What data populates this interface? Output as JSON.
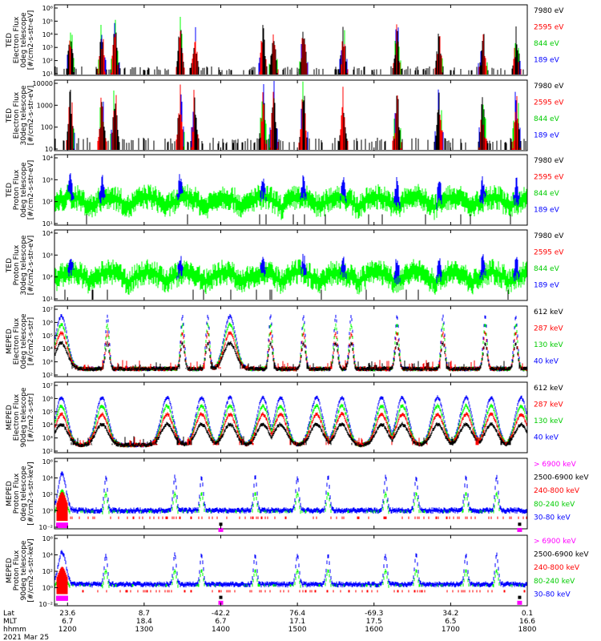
{
  "chart_data": {
    "type": "line",
    "x": {
      "time_ticks": [
        "1200",
        "1300",
        "1400",
        "1500",
        "1600",
        "1700",
        "1800"
      ],
      "hours": [
        12,
        13,
        14,
        15,
        16,
        17,
        18
      ],
      "range_hours": [
        11.83,
        18.0
      ]
    },
    "footer": {
      "row_labels": [
        "Lat",
        "MLT",
        "hhmm"
      ],
      "lat": [
        "23.6",
        "8.7",
        "-42.2",
        "76.4",
        "-69.3",
        "34.2",
        "0.1"
      ],
      "mlt": [
        "6.7",
        "18.4",
        "6.7",
        "17.1",
        "17.5",
        "6.5",
        "16.6"
      ],
      "date": "2021 Mar 25"
    },
    "colors": {
      "black": "#000000",
      "red": "#ff0000",
      "green": "#00ff00",
      "blue": "#0000ff",
      "magenta": "#ff00ff"
    },
    "panels": [
      {
        "ylabel": [
          "TED",
          "Electron Flux",
          "0deg telescope",
          "[#/cm2-s-str-eV]"
        ],
        "yticks": [
          "10¹",
          "10²",
          "10³",
          "10⁴",
          "10⁵",
          "10⁶"
        ],
        "ylog": [
          1,
          6
        ],
        "legend": [
          {
            "label": "7980 eV",
            "color": "#000000"
          },
          {
            "label": "2595 eV",
            "color": "#ff0000"
          },
          {
            "label": "844 eV",
            "color": "#00cc00"
          },
          {
            "label": "189 eV",
            "color": "#0000ff"
          }
        ],
        "kind": "ted_e",
        "bursts": [
          12.04,
          12.45,
          12.62,
          13.47,
          13.66,
          14.55,
          14.69,
          15.08,
          15.6,
          16.3,
          16.85,
          17.42,
          17.86
        ],
        "peak": 4.5
      },
      {
        "ylabel": [
          "TED",
          "Electron Flux",
          "30deg telescope",
          "[#/cm2-s-str-eV]"
        ],
        "yticks": [
          "10",
          "100",
          "1000",
          "10000"
        ],
        "ylog": [
          0.5,
          4
        ],
        "legend": [
          {
            "label": "7980 eV",
            "color": "#000000"
          },
          {
            "label": "2595 eV",
            "color": "#ff0000"
          },
          {
            "label": "844 eV",
            "color": "#00cc00"
          },
          {
            "label": "189 eV",
            "color": "#0000ff"
          }
        ],
        "kind": "ted_e",
        "bursts": [
          12.04,
          12.45,
          12.62,
          13.47,
          13.66,
          14.55,
          14.69,
          15.08,
          15.6,
          16.3,
          16.85,
          17.42,
          17.86
        ],
        "peak": 3.5
      },
      {
        "ylabel": [
          "TED",
          "Proton Flux",
          "0deg telescope",
          "[#/cm2-s-str-eV]"
        ],
        "yticks": [
          "10¹",
          "10²",
          "10³",
          "10⁴"
        ],
        "ylog": [
          0.8,
          4.7
        ],
        "legend": [
          {
            "label": "7980 eV",
            "color": "#000000"
          },
          {
            "label": "2595 eV",
            "color": "#ff0000"
          },
          {
            "label": "844 eV",
            "color": "#00cc00"
          },
          {
            "label": "189 eV",
            "color": "#0000ff"
          }
        ],
        "kind": "ted_p",
        "bursts": [
          12.04,
          12.45,
          13.47,
          14.55,
          15.08,
          15.6,
          16.3,
          16.85,
          17.42,
          17.86
        ],
        "peak": 3.8
      },
      {
        "ylabel": [
          "TED",
          "Proton Flux",
          "30deg telescope",
          "[#/cm2-s-str-eV]"
        ],
        "yticks": [
          "10¹",
          "10²",
          "10³",
          "10⁴"
        ],
        "ylog": [
          0.8,
          4.7
        ],
        "legend": [
          {
            "label": "7980 eV",
            "color": "#000000"
          },
          {
            "label": "2595 eV",
            "color": "#ff0000"
          },
          {
            "label": "844 eV",
            "color": "#00cc00"
          },
          {
            "label": "189 eV",
            "color": "#0000ff"
          }
        ],
        "kind": "ted_p",
        "bursts": [
          12.04,
          13.47,
          14.55,
          15.08,
          15.6,
          16.3,
          16.85,
          17.42,
          17.86
        ],
        "peak": 3.5
      },
      {
        "ylabel": [
          "MEPED",
          "Electron Flux",
          "0deg telescope",
          "[#/cm2-s-str]"
        ],
        "yticks": [
          "10²",
          "10³",
          "10⁴",
          "10⁵",
          "10⁶",
          "10⁷"
        ],
        "ylog": [
          1.5,
          7
        ],
        "legend": [
          {
            "label": "612 keV",
            "color": "#000000"
          },
          {
            "label": "287 keV",
            "color": "#ff0000"
          },
          {
            "label": "130 keV",
            "color": "#00cc00"
          },
          {
            "label": "40 keV",
            "color": "#0000ff"
          }
        ],
        "kind": "meped_e",
        "belts": [
          11.92,
          14.12
        ],
        "bursts": [
          12.52,
          13.5,
          13.83,
          14.65,
          15.08,
          15.5,
          15.7,
          16.3,
          16.9,
          17.45,
          17.85
        ],
        "peak": 6.2
      },
      {
        "ylabel": [
          "MEPED",
          "Electron Flux",
          "90deg telescope",
          "[#/cm2-s-str]"
        ],
        "yticks": [
          "10²",
          "10³",
          "10⁴",
          "10⁵",
          "10⁶",
          "10⁷"
        ],
        "ylog": [
          1.5,
          7
        ],
        "legend": [
          {
            "label": "612 keV",
            "color": "#000000"
          },
          {
            "label": "287 keV",
            "color": "#ff0000"
          },
          {
            "label": "130 keV",
            "color": "#00cc00"
          },
          {
            "label": "40 keV",
            "color": "#0000ff"
          }
        ],
        "kind": "meped_e90",
        "belts": [
          11.92,
          12.45,
          13.3,
          13.75,
          14.12,
          14.55,
          14.78,
          15.25,
          15.58,
          16.1,
          16.37,
          16.83,
          17.2,
          17.53,
          17.92
        ],
        "peak": 5.8
      },
      {
        "ylabel": [
          "MEPED",
          "Proton Flux",
          "0deg telescope",
          "[#/cm2-s-str-keV]"
        ],
        "yticks": [
          "10⁻²",
          "10⁰",
          "10²",
          "10⁴",
          "10⁶"
        ],
        "ylog": [
          -2,
          6
        ],
        "legend": [
          {
            "label": "> 6900 keV",
            "color": "#ff00ff"
          },
          {
            "label": "2500-6900 keV",
            "color": "#000000"
          },
          {
            "label": "240-800 keV",
            "color": "#ff0000"
          },
          {
            "label": "80-240 keV",
            "color": "#00cc00"
          },
          {
            "label": "30-80 keV",
            "color": "#0000ff"
          }
        ],
        "kind": "meped_p",
        "belts": [
          11.93
        ],
        "bursts": [
          12.5,
          13.4,
          13.75,
          14.45,
          15.0,
          15.4,
          16.15,
          16.55,
          17.2,
          17.6
        ],
        "saa": [
          14.0,
          17.9
        ],
        "peak": 4.3
      },
      {
        "ylabel": [
          "MEPED",
          "Proton Flux",
          "90deg telescope",
          "[#/cm2-s-str-keV]"
        ],
        "yticks": [
          "10⁻²",
          "10⁰",
          "10²",
          "10⁴",
          "10⁶"
        ],
        "ylog": [
          -2.5,
          6
        ],
        "legend": [
          {
            "label": "> 6900 keV",
            "color": "#ff00ff"
          },
          {
            "label": "2500-6900 keV",
            "color": "#000000"
          },
          {
            "label": "240-800 keV",
            "color": "#ff0000"
          },
          {
            "label": "80-240 keV",
            "color": "#00cc00"
          },
          {
            "label": "30-80 keV",
            "color": "#0000ff"
          }
        ],
        "kind": "meped_p",
        "belts": [
          11.93
        ],
        "bursts": [
          12.5,
          13.4,
          13.75,
          14.45,
          15.0,
          15.4,
          16.15,
          16.55,
          17.2,
          17.6
        ],
        "saa": [
          14.0,
          17.9
        ],
        "peak": 4.0
      }
    ]
  }
}
